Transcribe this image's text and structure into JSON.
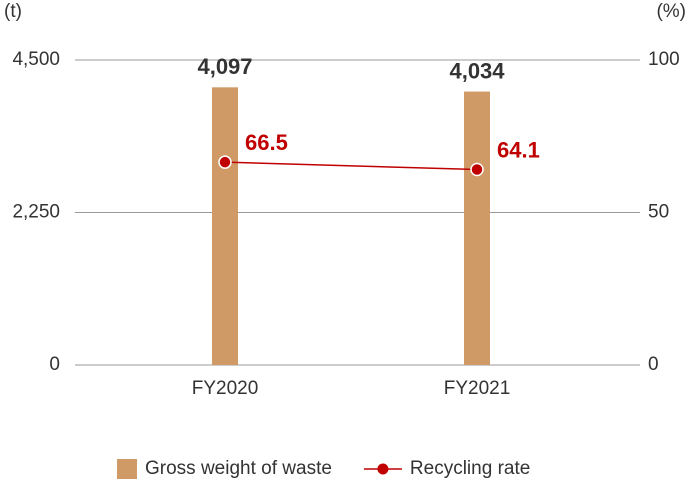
{
  "chart_data": {
    "type": "bar",
    "y_unit": "(t)",
    "y2_unit": "(%)",
    "categories": [
      "FY2020",
      "FY2021"
    ],
    "series": [
      {
        "name": "Gross weight of waste",
        "type": "bar",
        "color": "#cf9a65",
        "values": [
          4097,
          4034
        ],
        "value_labels": [
          "4,097",
          "4,034"
        ]
      },
      {
        "name": "Recycling rate",
        "type": "line",
        "axis": "y2",
        "color": "#c00000",
        "values": [
          66.5,
          64.1
        ]
      }
    ],
    "ylim": [
      0,
      4500
    ],
    "yticks": [
      0,
      {
        "value": 2250,
        "label": "2,250"
      },
      {
        "value": 4500,
        "label": "4,500"
      }
    ],
    "y2lim": [
      0,
      100
    ],
    "y2ticks": [
      0,
      50,
      100
    ],
    "grid": true,
    "legend": "bottom"
  }
}
